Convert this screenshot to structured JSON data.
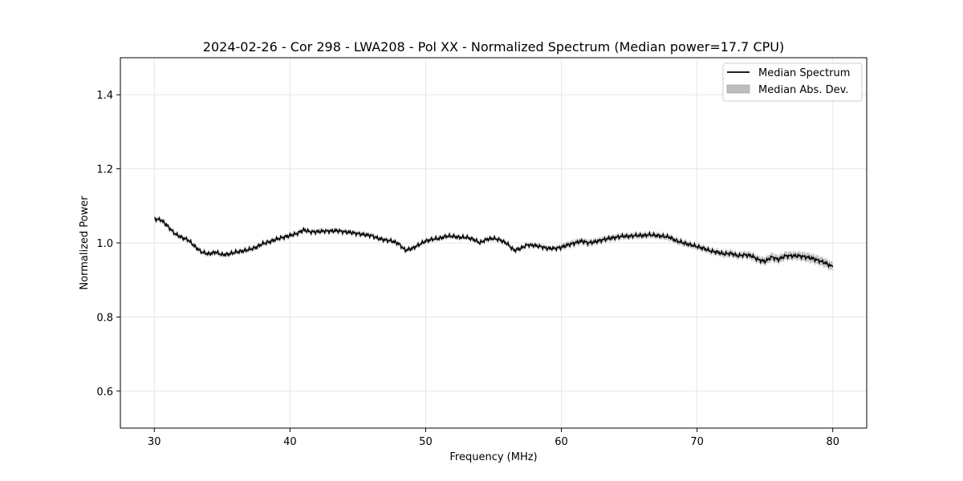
{
  "chart_data": {
    "type": "line",
    "title": "2024-02-26 - Cor 298 - LWA208 - Pol XX - Normalized Spectrum (Median power=17.7 CPU)",
    "xlabel": "Frequency (MHz)",
    "ylabel": "Normalized Power",
    "xlim": [
      27.5,
      82.5
    ],
    "ylim": [
      0.5,
      1.5
    ],
    "xticks": [
      30,
      40,
      50,
      60,
      70,
      80
    ],
    "yticks": [
      0.6,
      0.8,
      1.0,
      1.2,
      1.4
    ],
    "xtick_labels": [
      "30",
      "40",
      "50",
      "60",
      "70",
      "80"
    ],
    "ytick_labels": [
      "0.6",
      "0.8",
      "1.0",
      "1.2",
      "1.4"
    ],
    "grid": true,
    "legend": {
      "position": "top-right",
      "entries": [
        {
          "label": "Median Spectrum",
          "kind": "line",
          "color": "#000000"
        },
        {
          "label": "Median Abs. Dev.",
          "kind": "band",
          "color": "#bdbdbd"
        }
      ]
    },
    "series": [
      {
        "name": "Median Spectrum",
        "x": [
          30,
          30.5,
          31,
          31.5,
          32,
          32.5,
          33,
          33.5,
          34,
          34.5,
          35,
          35.5,
          36,
          36.5,
          37,
          37.5,
          38,
          38.5,
          39,
          39.5,
          40,
          40.5,
          41,
          41.5,
          42,
          42.5,
          43,
          43.5,
          44,
          44.5,
          45,
          45.5,
          46,
          46.5,
          47,
          47.5,
          48,
          48.5,
          49,
          49.5,
          50,
          50.5,
          51,
          51.5,
          52,
          52.5,
          53,
          53.5,
          54,
          54.5,
          55,
          55.5,
          56,
          56.5,
          57,
          57.5,
          58,
          58.5,
          59,
          59.5,
          60,
          60.5,
          61,
          61.5,
          62,
          62.5,
          63,
          63.5,
          64,
          64.5,
          65,
          65.5,
          66,
          66.5,
          67,
          67.5,
          68,
          68.5,
          69,
          69.5,
          70,
          70.5,
          71,
          71.5,
          72,
          72.5,
          73,
          73.5,
          74,
          74.5,
          75,
          75.5,
          76,
          76.5,
          77,
          77.5,
          78,
          78.5,
          79,
          79.5,
          80
        ],
        "values": [
          1.065,
          1.062,
          1.045,
          1.025,
          1.015,
          1.008,
          0.99,
          0.975,
          0.97,
          0.975,
          0.968,
          0.97,
          0.975,
          0.978,
          0.982,
          0.988,
          0.998,
          1.003,
          1.01,
          1.015,
          1.02,
          1.025,
          1.035,
          1.03,
          1.03,
          1.032,
          1.032,
          1.033,
          1.03,
          1.028,
          1.025,
          1.022,
          1.02,
          1.012,
          1.008,
          1.005,
          0.998,
          0.98,
          0.985,
          0.995,
          1.005,
          1.01,
          1.012,
          1.018,
          1.018,
          1.015,
          1.015,
          1.01,
          1.0,
          1.01,
          1.012,
          1.008,
          0.998,
          0.98,
          0.985,
          0.995,
          0.993,
          0.99,
          0.985,
          0.985,
          0.988,
          0.995,
          1.0,
          1.005,
          1.0,
          1.003,
          1.008,
          1.012,
          1.015,
          1.018,
          1.018,
          1.02,
          1.02,
          1.022,
          1.02,
          1.018,
          1.015,
          1.005,
          1.0,
          0.995,
          0.99,
          0.985,
          0.978,
          0.975,
          0.97,
          0.972,
          0.965,
          0.968,
          0.965,
          0.955,
          0.95,
          0.962,
          0.955,
          0.965,
          0.965,
          0.965,
          0.962,
          0.958,
          0.952,
          0.945,
          0.935
        ],
        "mad": [
          0.006,
          0.006,
          0.006,
          0.006,
          0.006,
          0.006,
          0.006,
          0.006,
          0.006,
          0.006,
          0.006,
          0.006,
          0.006,
          0.006,
          0.006,
          0.006,
          0.006,
          0.006,
          0.006,
          0.006,
          0.006,
          0.006,
          0.006,
          0.006,
          0.006,
          0.006,
          0.006,
          0.006,
          0.006,
          0.006,
          0.006,
          0.006,
          0.006,
          0.006,
          0.006,
          0.006,
          0.006,
          0.006,
          0.006,
          0.006,
          0.006,
          0.006,
          0.006,
          0.006,
          0.006,
          0.006,
          0.006,
          0.006,
          0.006,
          0.006,
          0.006,
          0.006,
          0.006,
          0.006,
          0.006,
          0.006,
          0.006,
          0.006,
          0.006,
          0.006,
          0.008,
          0.008,
          0.008,
          0.008,
          0.008,
          0.008,
          0.008,
          0.008,
          0.008,
          0.008,
          0.008,
          0.008,
          0.008,
          0.008,
          0.008,
          0.008,
          0.008,
          0.008,
          0.008,
          0.008,
          0.008,
          0.008,
          0.008,
          0.008,
          0.009,
          0.009,
          0.009,
          0.009,
          0.01,
          0.01,
          0.01,
          0.011,
          0.011,
          0.011,
          0.011,
          0.011,
          0.012,
          0.012,
          0.012,
          0.012,
          0.012
        ]
      }
    ]
  },
  "colors": {
    "line": "#000000",
    "band": "#bdbdbd",
    "grid": "#e6e6e6"
  }
}
